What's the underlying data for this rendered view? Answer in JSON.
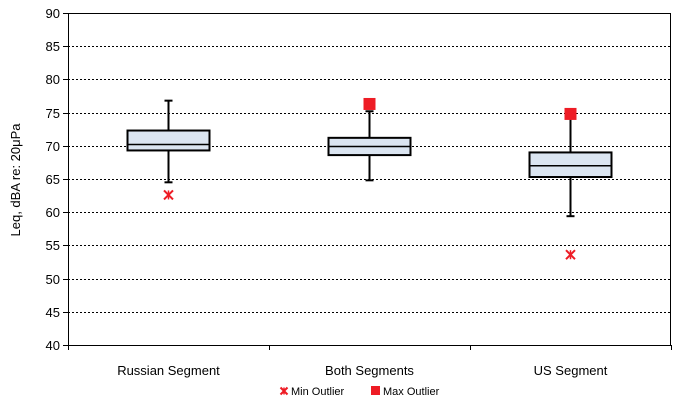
{
  "chart_data": {
    "type": "box",
    "title": "",
    "xlabel": "",
    "ylabel": "Leq, dBA re: 20μPa",
    "ylim": [
      40,
      90
    ],
    "yticks": [
      40,
      45,
      50,
      55,
      60,
      65,
      70,
      75,
      80,
      85,
      90
    ],
    "grid": true,
    "legend_position": "bottom",
    "categories": [
      "Russian Segment",
      "Both Segments",
      "US Segment"
    ],
    "boxes": [
      {
        "whisker_low": 64.5,
        "q1": 69.3,
        "median": 70.2,
        "q3": 72.3,
        "whisker_high": 76.8
      },
      {
        "whisker_low": 64.8,
        "q1": 68.6,
        "median": 69.9,
        "q3": 71.2,
        "whisker_high": 75.2
      },
      {
        "whisker_low": 59.4,
        "q1": 65.3,
        "median": 67.0,
        "q3": 69.0,
        "whisker_high": 74.2
      }
    ],
    "series": [
      {
        "name": "Min Outlier",
        "marker": "x",
        "color": "#ee1c25",
        "values": [
          62.6,
          null,
          53.6
        ]
      },
      {
        "name": "Max Outlier",
        "marker": "square",
        "color": "#ee1c25",
        "values": [
          null,
          76.3,
          74.8
        ]
      }
    ],
    "colors": {
      "box_fill": "#dbe5f1",
      "box_stroke": "#000000",
      "grid": "#000000"
    }
  }
}
